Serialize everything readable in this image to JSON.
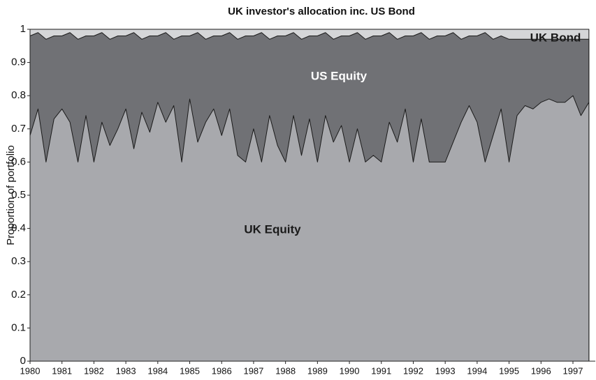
{
  "chart_data": {
    "type": "stacked-area",
    "title": "UK investor's allocation inc. US Bond",
    "y_label": "Proportion of portfolio",
    "x": [
      1980,
      1980.25,
      1980.5,
      1980.75,
      1981,
      1981.25,
      1981.5,
      1981.75,
      1982,
      1982.25,
      1982.5,
      1982.75,
      1983,
      1983.25,
      1983.5,
      1983.75,
      1984,
      1984.25,
      1984.5,
      1984.75,
      1985,
      1985.25,
      1985.5,
      1985.75,
      1986,
      1986.25,
      1986.5,
      1986.75,
      1987,
      1987.25,
      1987.5,
      1987.75,
      1988,
      1988.25,
      1988.5,
      1988.75,
      1989,
      1989.25,
      1989.5,
      1989.75,
      1990,
      1990.25,
      1990.5,
      1990.75,
      1991,
      1991.25,
      1991.5,
      1991.75,
      1992,
      1992.25,
      1992.5,
      1992.75,
      1993,
      1993.25,
      1993.5,
      1993.75,
      1994,
      1994.25,
      1994.5,
      1994.75,
      1995,
      1995.25,
      1995.5,
      1995.75,
      1996,
      1996.25,
      1996.5,
      1996.75,
      1997,
      1997.25,
      1997.5
    ],
    "series": [
      {
        "name": "UK Equity",
        "color": "#a8a9ad",
        "values": [
          0.68,
          0.76,
          0.6,
          0.73,
          0.76,
          0.72,
          0.6,
          0.74,
          0.6,
          0.72,
          0.65,
          0.7,
          0.76,
          0.64,
          0.75,
          0.69,
          0.78,
          0.72,
          0.77,
          0.6,
          0.79,
          0.66,
          0.72,
          0.76,
          0.68,
          0.76,
          0.62,
          0.6,
          0.7,
          0.6,
          0.74,
          0.65,
          0.6,
          0.74,
          0.62,
          0.73,
          0.6,
          0.74,
          0.66,
          0.71,
          0.6,
          0.7,
          0.6,
          0.62,
          0.6,
          0.72,
          0.66,
          0.76,
          0.6,
          0.73,
          0.6,
          0.6,
          0.6,
          0.66,
          0.72,
          0.77,
          0.72,
          0.6,
          0.68,
          0.76,
          0.6,
          0.74,
          0.77,
          0.76,
          0.78,
          0.79,
          0.78,
          0.78,
          0.8,
          0.74,
          0.78
        ]
      },
      {
        "name": "US Equity",
        "color": "#707175",
        "values": [
          0.3,
          0.23,
          0.37,
          0.25,
          0.22,
          0.27,
          0.37,
          0.24,
          0.38,
          0.27,
          0.32,
          0.28,
          0.22,
          0.35,
          0.22,
          0.29,
          0.2,
          0.27,
          0.2,
          0.38,
          0.19,
          0.33,
          0.25,
          0.22,
          0.3,
          0.23,
          0.35,
          0.38,
          0.28,
          0.39,
          0.23,
          0.33,
          0.38,
          0.25,
          0.35,
          0.25,
          0.38,
          0.25,
          0.31,
          0.27,
          0.38,
          0.29,
          0.37,
          0.36,
          0.38,
          0.27,
          0.31,
          0.22,
          0.38,
          0.26,
          0.37,
          0.38,
          0.38,
          0.33,
          0.25,
          0.21,
          0.26,
          0.39,
          0.29,
          0.22,
          0.37,
          0.23,
          0.2,
          0.21,
          0.19,
          0.18,
          0.19,
          0.19,
          0.17,
          0.23,
          0.19
        ]
      },
      {
        "name": "UK Bond",
        "color": "#d5d6d8",
        "values": [
          0.02,
          0.01,
          0.03,
          0.02,
          0.02,
          0.01,
          0.03,
          0.02,
          0.02,
          0.01,
          0.03,
          0.02,
          0.02,
          0.01,
          0.03,
          0.02,
          0.02,
          0.01,
          0.03,
          0.02,
          0.02,
          0.01,
          0.03,
          0.02,
          0.02,
          0.01,
          0.03,
          0.02,
          0.02,
          0.01,
          0.03,
          0.02,
          0.02,
          0.01,
          0.03,
          0.02,
          0.02,
          0.01,
          0.03,
          0.02,
          0.02,
          0.01,
          0.03,
          0.02,
          0.02,
          0.01,
          0.03,
          0.02,
          0.02,
          0.01,
          0.03,
          0.02,
          0.02,
          0.01,
          0.03,
          0.02,
          0.02,
          0.01,
          0.03,
          0.02,
          0.03,
          0.03,
          0.03,
          0.03,
          0.03,
          0.03,
          0.03,
          0.03,
          0.03,
          0.03,
          0.03
        ]
      }
    ],
    "xlim": [
      1980,
      1997.7
    ],
    "xticks": [
      1980,
      1981,
      1982,
      1983,
      1984,
      1985,
      1986,
      1987,
      1988,
      1989,
      1990,
      1991,
      1992,
      1993,
      1994,
      1995,
      1996,
      1997
    ],
    "ylim": [
      0,
      1
    ],
    "yticks": [
      0,
      0.1,
      0.2,
      0.3,
      0.4,
      0.5,
      0.6,
      0.7,
      0.8,
      0.9,
      1
    ]
  }
}
